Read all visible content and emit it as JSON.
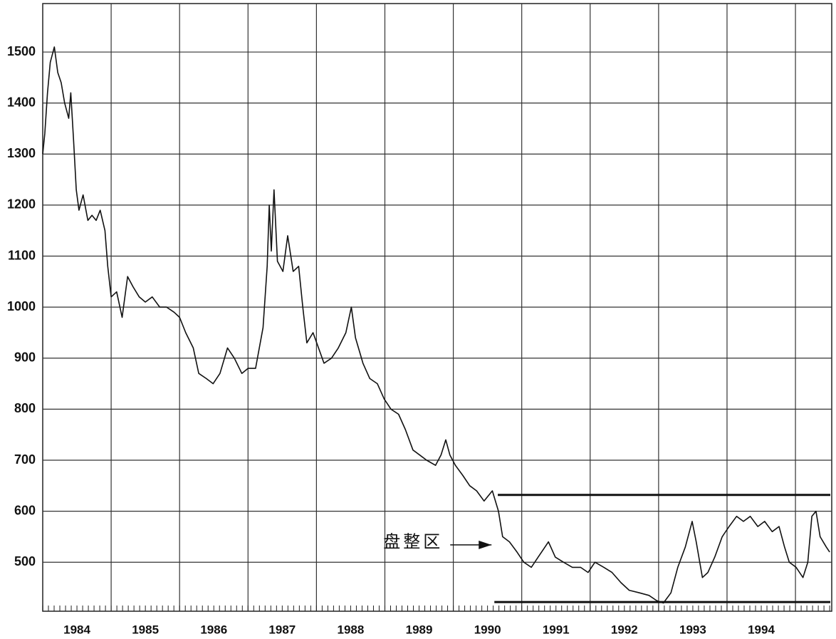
{
  "chart_data": {
    "type": "line",
    "categories": [
      "1984",
      "1985",
      "1986",
      "1987",
      "1988",
      "1989",
      "1990",
      "1991",
      "1992",
      "1993",
      "1994"
    ],
    "xgrid": [
      1984,
      1985,
      1986,
      1987,
      1988,
      1989,
      1990,
      1991,
      1992,
      1993,
      1994,
      1995
    ],
    "xlim": [
      1984,
      1995.53
    ],
    "ylim": [
      404,
      1595
    ],
    "yticks": [
      500,
      600,
      700,
      800,
      900,
      1000,
      1100,
      1200,
      1300,
      1400,
      1500
    ],
    "grid": true,
    "color": "#111111",
    "x": [
      1984.0,
      1984.03,
      1984.07,
      1984.11,
      1984.17,
      1984.22,
      1984.27,
      1984.32,
      1984.38,
      1984.41,
      1984.45,
      1984.49,
      1984.53,
      1984.59,
      1984.66,
      1984.72,
      1984.78,
      1984.84,
      1984.91,
      1984.95,
      1985.0,
      1985.08,
      1985.16,
      1985.24,
      1985.32,
      1985.41,
      1985.5,
      1985.6,
      1985.71,
      1985.81,
      1985.92,
      1986.0,
      1986.09,
      1986.2,
      1986.28,
      1986.39,
      1986.49,
      1986.59,
      1986.7,
      1986.8,
      1986.91,
      1987.0,
      1987.11,
      1987.22,
      1987.28,
      1987.31,
      1987.34,
      1987.38,
      1987.43,
      1987.51,
      1987.58,
      1987.66,
      1987.74,
      1987.8,
      1987.86,
      1987.95,
      1988.03,
      1988.11,
      1988.22,
      1988.32,
      1988.43,
      1988.51,
      1988.57,
      1988.68,
      1988.78,
      1988.89,
      1988.99,
      1989.09,
      1989.2,
      1989.3,
      1989.41,
      1989.51,
      1989.61,
      1989.74,
      1989.82,
      1989.89,
      1989.95,
      1990.03,
      1990.14,
      1990.24,
      1990.34,
      1990.45,
      1990.57,
      1990.66,
      1990.72,
      1990.82,
      1990.93,
      1991.03,
      1991.14,
      1991.24,
      1991.39,
      1991.49,
      1991.61,
      1991.74,
      1991.86,
      1991.97,
      1992.07,
      1992.2,
      1992.32,
      1992.45,
      1992.57,
      1992.72,
      1992.86,
      1992.97,
      1993.07,
      1993.18,
      1993.28,
      1993.39,
      1993.49,
      1993.55,
      1993.64,
      1993.72,
      1993.82,
      1993.93,
      1994.03,
      1994.14,
      1994.24,
      1994.34,
      1994.45,
      1994.55,
      1994.66,
      1994.76,
      1994.84,
      1994.91,
      1995.01,
      1995.11,
      1995.18,
      1995.24,
      1995.3,
      1995.36,
      1995.45,
      1995.5
    ],
    "values": [
      1300,
      1340,
      1420,
      1480,
      1510,
      1460,
      1440,
      1400,
      1370,
      1420,
      1330,
      1230,
      1190,
      1220,
      1170,
      1180,
      1170,
      1190,
      1150,
      1080,
      1020,
      1030,
      980,
      1060,
      1040,
      1020,
      1010,
      1020,
      1000,
      1000,
      990,
      980,
      950,
      920,
      870,
      860,
      850,
      870,
      920,
      900,
      870,
      880,
      880,
      960,
      1080,
      1200,
      1110,
      1230,
      1090,
      1070,
      1140,
      1070,
      1080,
      1000,
      930,
      950,
      920,
      890,
      900,
      920,
      950,
      1000,
      940,
      890,
      860,
      850,
      820,
      800,
      790,
      760,
      720,
      710,
      700,
      690,
      710,
      740,
      710,
      690,
      670,
      650,
      640,
      620,
      640,
      600,
      550,
      540,
      520,
      500,
      490,
      510,
      540,
      510,
      500,
      490,
      490,
      480,
      500,
      490,
      480,
      460,
      445,
      440,
      435,
      425,
      420,
      440,
      490,
      530,
      580,
      540,
      470,
      480,
      510,
      550,
      570,
      590,
      580,
      590,
      570,
      580,
      560,
      570,
      530,
      500,
      490,
      470,
      500,
      590,
      600,
      550,
      530,
      520
    ],
    "reference_lines": [
      {
        "y": 632,
        "x0": 1990.65
      },
      {
        "y": 422,
        "x0": 1990.6
      }
    ],
    "annotation": {
      "text": "盘整区",
      "x": 1990.6,
      "y": 534
    }
  }
}
